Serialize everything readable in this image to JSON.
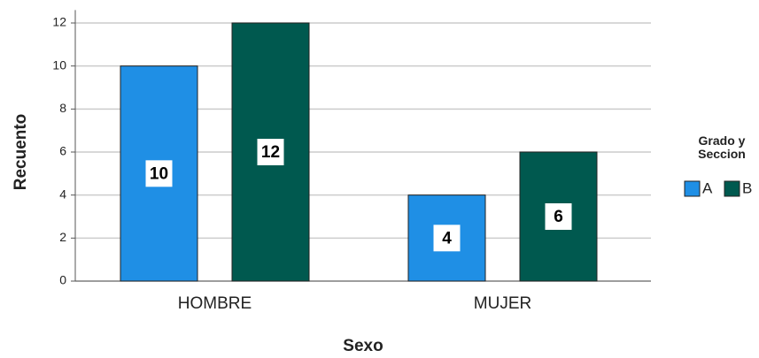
{
  "chart_data": {
    "type": "bar",
    "x_label": "Sexo",
    "y_label": "Recuento",
    "categories": [
      "HOMBRE",
      "MUJER"
    ],
    "series": [
      {
        "name": "A",
        "color": "#1f8fe5",
        "values": [
          10,
          4
        ]
      },
      {
        "name": "B",
        "color": "#00594f",
        "values": [
          12,
          6
        ]
      }
    ],
    "ylim": [
      0,
      12.6
    ],
    "yticks": [
      0,
      2,
      4,
      6,
      8,
      10,
      12
    ],
    "grid": true,
    "legend_title": "Grado y Seccion",
    "legend": "right",
    "data_labels": true
  }
}
